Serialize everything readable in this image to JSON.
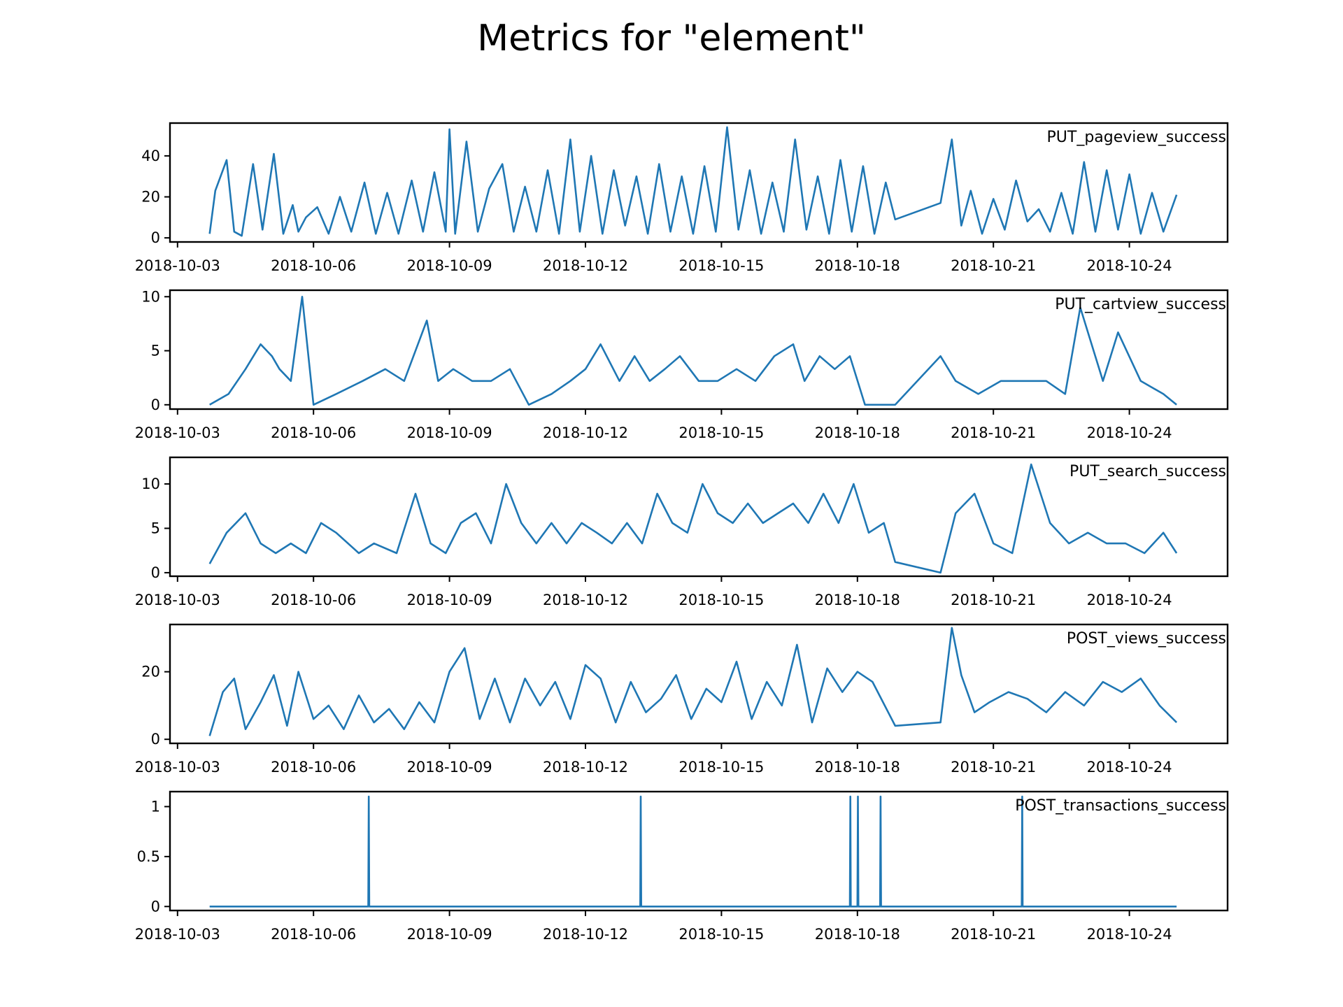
{
  "figure": {
    "title": "Metrics for \"element\"",
    "line_color": "#1f77b4"
  },
  "chart_data": [
    {
      "type": "line",
      "label": "PUT_pageview_success",
      "xlim": [
        "2018-10-02T20:00",
        "2018-10-26T04:00"
      ],
      "ylim": [
        -2,
        56
      ],
      "yticks": [
        0,
        20,
        40
      ],
      "xticks": [
        "2018-10-03",
        "2018-10-06",
        "2018-10-09",
        "2018-10-12",
        "2018-10-15",
        "2018-10-18",
        "2018-10-21",
        "2018-10-24"
      ],
      "grid": false,
      "x": [
        "2018-10-03T17:00",
        "2018-10-03T20:00",
        "2018-10-04T02:00",
        "2018-10-04T06:00",
        "2018-10-04T10:00",
        "2018-10-04T16:00",
        "2018-10-04T21:00",
        "2018-10-05T03:00",
        "2018-10-05T08:00",
        "2018-10-05T13:00",
        "2018-10-05T16:00",
        "2018-10-05T20:00",
        "2018-10-06T02:00",
        "2018-10-06T08:00",
        "2018-10-06T14:00",
        "2018-10-06T20:00",
        "2018-10-07T03:00",
        "2018-10-07T09:00",
        "2018-10-07T15:00",
        "2018-10-07T21:00",
        "2018-10-08T04:00",
        "2018-10-08T10:00",
        "2018-10-08T16:00",
        "2018-10-08T22:00",
        "2018-10-09T00:00",
        "2018-10-09T03:00",
        "2018-10-09T09:00",
        "2018-10-09T15:00",
        "2018-10-09T21:00",
        "2018-10-10T04:00",
        "2018-10-10T10:00",
        "2018-10-10T16:00",
        "2018-10-10T22:00",
        "2018-10-11T04:00",
        "2018-10-11T10:00",
        "2018-10-11T16:00",
        "2018-10-11T21:00",
        "2018-10-12T03:00",
        "2018-10-12T09:00",
        "2018-10-12T15:00",
        "2018-10-12T21:00",
        "2018-10-13T03:00",
        "2018-10-13T09:00",
        "2018-10-13T15:00",
        "2018-10-13T21:00",
        "2018-10-14T03:00",
        "2018-10-14T09:00",
        "2018-10-14T15:00",
        "2018-10-14T21:00",
        "2018-10-15T03:00",
        "2018-10-15T09:00",
        "2018-10-15T15:00",
        "2018-10-15T21:00",
        "2018-10-16T03:00",
        "2018-10-16T09:00",
        "2018-10-16T15:00",
        "2018-10-16T21:00",
        "2018-10-17T03:00",
        "2018-10-17T09:00",
        "2018-10-17T15:00",
        "2018-10-17T21:00",
        "2018-10-18T03:00",
        "2018-10-18T09:00",
        "2018-10-18T15:00",
        "2018-10-18T20:00",
        "2018-10-19T20:00",
        "2018-10-20T02:00",
        "2018-10-20T07:00",
        "2018-10-20T12:00",
        "2018-10-20T18:00",
        "2018-10-21T00:00",
        "2018-10-21T06:00",
        "2018-10-21T12:00",
        "2018-10-21T18:00",
        "2018-10-22T00:00",
        "2018-10-22T06:00",
        "2018-10-22T12:00",
        "2018-10-22T18:00",
        "2018-10-23T00:00",
        "2018-10-23T06:00",
        "2018-10-23T12:00",
        "2018-10-23T18:00",
        "2018-10-24T00:00",
        "2018-10-24T06:00",
        "2018-10-24T12:00",
        "2018-10-24T18:00",
        "2018-10-25T01:00"
      ],
      "y": [
        2,
        23,
        38,
        3,
        1,
        36,
        4,
        41,
        2,
        16,
        3,
        10,
        15,
        2,
        20,
        3,
        27,
        2,
        22,
        2,
        28,
        3,
        32,
        3,
        53,
        2,
        47,
        3,
        24,
        36,
        3,
        25,
        3,
        33,
        2,
        48,
        3,
        40,
        2,
        33,
        6,
        30,
        2,
        36,
        3,
        30,
        2,
        35,
        3,
        54,
        4,
        33,
        2,
        27,
        3,
        48,
        4,
        30,
        2,
        38,
        3,
        35,
        2,
        27,
        9,
        17,
        48,
        6,
        23,
        2,
        19,
        4,
        28,
        8,
        14,
        3,
        22,
        2,
        37,
        3,
        33,
        4,
        31,
        2,
        22,
        3,
        21
      ]
    },
    {
      "type": "line",
      "label": "PUT_cartview_success",
      "xlim": [
        "2018-10-02T20:00",
        "2018-10-26T04:00"
      ],
      "ylim": [
        -0.4,
        10.6
      ],
      "yticks": [
        0,
        5,
        10
      ],
      "xticks": [
        "2018-10-03",
        "2018-10-06",
        "2018-10-09",
        "2018-10-12",
        "2018-10-15",
        "2018-10-18",
        "2018-10-21",
        "2018-10-24"
      ],
      "grid": false,
      "x": [
        "2018-10-03T17:00",
        "2018-10-04T03:00",
        "2018-10-04T12:00",
        "2018-10-04T20:00",
        "2018-10-05T02:00",
        "2018-10-05T06:00",
        "2018-10-05T12:00",
        "2018-10-05T18:00",
        "2018-10-06T00:00",
        "2018-10-06T12:00",
        "2018-10-07T02:00",
        "2018-10-07T14:00",
        "2018-10-08T00:00",
        "2018-10-08T12:00",
        "2018-10-08T18:00",
        "2018-10-09T02:00",
        "2018-10-09T12:00",
        "2018-10-09T22:00",
        "2018-10-10T08:00",
        "2018-10-10T18:00",
        "2018-10-11T06:00",
        "2018-10-11T16:00",
        "2018-10-12T00:00",
        "2018-10-12T08:00",
        "2018-10-12T18:00",
        "2018-10-13T02:00",
        "2018-10-13T10:00",
        "2018-10-13T18:00",
        "2018-10-14T02:00",
        "2018-10-14T12:00",
        "2018-10-14T22:00",
        "2018-10-15T08:00",
        "2018-10-15T18:00",
        "2018-10-16T04:00",
        "2018-10-16T14:00",
        "2018-10-16T20:00",
        "2018-10-17T04:00",
        "2018-10-17T12:00",
        "2018-10-17T20:00",
        "2018-10-18T04:00",
        "2018-10-18T20:00",
        "2018-10-19T20:00",
        "2018-10-20T04:00",
        "2018-10-20T16:00",
        "2018-10-21T04:00",
        "2018-10-21T16:00",
        "2018-10-22T04:00",
        "2018-10-22T14:00",
        "2018-10-22T22:00",
        "2018-10-23T10:00",
        "2018-10-23T18:00",
        "2018-10-24T06:00",
        "2018-10-24T18:00",
        "2018-10-25T01:00"
      ],
      "y": [
        0,
        1,
        3.3,
        5.6,
        4.5,
        3.3,
        2.2,
        10,
        0,
        1,
        2.2,
        3.3,
        2.2,
        7.8,
        2.2,
        3.3,
        2.2,
        2.2,
        3.3,
        0,
        1,
        2.2,
        3.3,
        5.6,
        2.2,
        4.5,
        2.2,
        3.3,
        4.5,
        2.2,
        2.2,
        3.3,
        2.2,
        4.5,
        5.6,
        2.2,
        4.5,
        3.3,
        4.5,
        0,
        0,
        4.5,
        2.2,
        1,
        2.2,
        2.2,
        2.2,
        1,
        9,
        2.2,
        6.7,
        2.2,
        1,
        0
      ]
    },
    {
      "type": "line",
      "label": "PUT_search_success",
      "xlim": [
        "2018-10-02T20:00",
        "2018-10-26T04:00"
      ],
      "ylim": [
        -0.4,
        13.0
      ],
      "yticks": [
        0,
        5,
        10
      ],
      "xticks": [
        "2018-10-03",
        "2018-10-06",
        "2018-10-09",
        "2018-10-12",
        "2018-10-15",
        "2018-10-18",
        "2018-10-21",
        "2018-10-24"
      ],
      "grid": false,
      "x": [
        "2018-10-03T17:00",
        "2018-10-04T02:00",
        "2018-10-04T12:00",
        "2018-10-04T20:00",
        "2018-10-05T04:00",
        "2018-10-05T12:00",
        "2018-10-05T20:00",
        "2018-10-06T04:00",
        "2018-10-06T12:00",
        "2018-10-07T00:00",
        "2018-10-07T08:00",
        "2018-10-07T20:00",
        "2018-10-08T06:00",
        "2018-10-08T14:00",
        "2018-10-08T22:00",
        "2018-10-09T06:00",
        "2018-10-09T14:00",
        "2018-10-09T22:00",
        "2018-10-10T06:00",
        "2018-10-10T14:00",
        "2018-10-10T22:00",
        "2018-10-11T06:00",
        "2018-10-11T14:00",
        "2018-10-11T22:00",
        "2018-10-12T06:00",
        "2018-10-12T14:00",
        "2018-10-12T22:00",
        "2018-10-13T06:00",
        "2018-10-13T14:00",
        "2018-10-13T22:00",
        "2018-10-14T06:00",
        "2018-10-14T14:00",
        "2018-10-14T22:00",
        "2018-10-15T06:00",
        "2018-10-15T14:00",
        "2018-10-15T22:00",
        "2018-10-16T06:00",
        "2018-10-16T14:00",
        "2018-10-16T22:00",
        "2018-10-17T06:00",
        "2018-10-17T14:00",
        "2018-10-17T22:00",
        "2018-10-18T06:00",
        "2018-10-18T14:00",
        "2018-10-18T20:00",
        "2018-10-19T20:00",
        "2018-10-20T04:00",
        "2018-10-20T14:00",
        "2018-10-21T00:00",
        "2018-10-21T10:00",
        "2018-10-21T20:00",
        "2018-10-22T06:00",
        "2018-10-22T16:00",
        "2018-10-23T02:00",
        "2018-10-23T12:00",
        "2018-10-23T22:00",
        "2018-10-24T08:00",
        "2018-10-24T18:00",
        "2018-10-25T01:00"
      ],
      "y": [
        1,
        4.5,
        6.7,
        3.3,
        2.2,
        3.3,
        2.2,
        5.6,
        4.5,
        2.2,
        3.3,
        2.2,
        8.9,
        3.3,
        2.2,
        5.6,
        6.7,
        3.3,
        10,
        5.6,
        3.3,
        5.6,
        3.3,
        5.6,
        4.5,
        3.3,
        5.6,
        3.3,
        8.9,
        5.6,
        4.5,
        10,
        6.7,
        5.6,
        7.8,
        5.6,
        6.7,
        7.8,
        5.6,
        8.9,
        5.6,
        10,
        4.5,
        5.6,
        1.2,
        0,
        6.7,
        8.9,
        3.3,
        2.2,
        12.2,
        5.6,
        3.3,
        4.5,
        3.3,
        3.3,
        2.2,
        4.5,
        2.2
      ]
    },
    {
      "type": "line",
      "label": "POST_views_success",
      "xlim": [
        "2018-10-02T20:00",
        "2018-10-26T04:00"
      ],
      "ylim": [
        -1.2,
        34.0
      ],
      "yticks": [
        0,
        20
      ],
      "xticks": [
        "2018-10-03",
        "2018-10-06",
        "2018-10-09",
        "2018-10-12",
        "2018-10-15",
        "2018-10-18",
        "2018-10-21",
        "2018-10-24"
      ],
      "grid": false,
      "x": [
        "2018-10-03T17:00",
        "2018-10-04T00:00",
        "2018-10-04T06:00",
        "2018-10-04T12:00",
        "2018-10-04T20:00",
        "2018-10-05T03:00",
        "2018-10-05T10:00",
        "2018-10-05T16:00",
        "2018-10-06T00:00",
        "2018-10-06T08:00",
        "2018-10-06T16:00",
        "2018-10-07T00:00",
        "2018-10-07T08:00",
        "2018-10-07T16:00",
        "2018-10-08T00:00",
        "2018-10-08T08:00",
        "2018-10-08T16:00",
        "2018-10-09T00:00",
        "2018-10-09T08:00",
        "2018-10-09T16:00",
        "2018-10-10T00:00",
        "2018-10-10T08:00",
        "2018-10-10T16:00",
        "2018-10-11T00:00",
        "2018-10-11T08:00",
        "2018-10-11T16:00",
        "2018-10-12T00:00",
        "2018-10-12T08:00",
        "2018-10-12T16:00",
        "2018-10-13T00:00",
        "2018-10-13T08:00",
        "2018-10-13T16:00",
        "2018-10-14T00:00",
        "2018-10-14T08:00",
        "2018-10-14T16:00",
        "2018-10-15T00:00",
        "2018-10-15T08:00",
        "2018-10-15T16:00",
        "2018-10-16T00:00",
        "2018-10-16T08:00",
        "2018-10-16T16:00",
        "2018-10-17T00:00",
        "2018-10-17T08:00",
        "2018-10-17T16:00",
        "2018-10-18T00:00",
        "2018-10-18T08:00",
        "2018-10-18T20:00",
        "2018-10-19T20:00",
        "2018-10-20T02:00",
        "2018-10-20T07:00",
        "2018-10-20T14:00",
        "2018-10-20T22:00",
        "2018-10-21T08:00",
        "2018-10-21T18:00",
        "2018-10-22T04:00",
        "2018-10-22T14:00",
        "2018-10-23T00:00",
        "2018-10-23T10:00",
        "2018-10-23T20:00",
        "2018-10-24T06:00",
        "2018-10-24T16:00",
        "2018-10-25T01:00"
      ],
      "y": [
        1,
        14,
        18,
        3,
        11,
        19,
        4,
        20,
        6,
        10,
        3,
        13,
        5,
        9,
        3,
        11,
        5,
        20,
        27,
        6,
        18,
        5,
        18,
        10,
        17,
        6,
        22,
        18,
        5,
        17,
        8,
        12,
        19,
        6,
        15,
        11,
        23,
        6,
        17,
        10,
        28,
        5,
        21,
        14,
        20,
        17,
        4,
        5,
        33,
        19,
        8,
        11,
        14,
        12,
        8,
        14,
        10,
        17,
        14,
        18,
        10,
        5
      ]
    },
    {
      "type": "line",
      "label": "POST_transactions_success",
      "xlim": [
        "2018-10-02T20:00",
        "2018-10-26T04:00"
      ],
      "ylim": [
        -0.04,
        1.15
      ],
      "yticks": [
        0.0,
        0.5,
        1.0
      ],
      "xticks": [
        "2018-10-03",
        "2018-10-06",
        "2018-10-09",
        "2018-10-12",
        "2018-10-15",
        "2018-10-18",
        "2018-10-21",
        "2018-10-24"
      ],
      "grid": false,
      "x": [
        "2018-10-03T17:00",
        "2018-10-07T05:00",
        "2018-10-07T05:15",
        "2018-10-07T05:30",
        "2018-10-13T05:00",
        "2018-10-13T05:15",
        "2018-10-13T05:30",
        "2018-10-17T20:00",
        "2018-10-17T20:15",
        "2018-10-17T20:30",
        "2018-10-18T00:00",
        "2018-10-18T00:15",
        "2018-10-18T00:30",
        "2018-10-18T12:00",
        "2018-10-18T12:15",
        "2018-10-18T12:30",
        "2018-10-21T15:00",
        "2018-10-21T15:15",
        "2018-10-21T15:30",
        "2018-10-25T01:00"
      ],
      "y": [
        0,
        0,
        1.1,
        0,
        0,
        1.1,
        0,
        0,
        1.1,
        0,
        0,
        1.1,
        0,
        0,
        1.1,
        0,
        0,
        1.1,
        0,
        0
      ]
    }
  ]
}
